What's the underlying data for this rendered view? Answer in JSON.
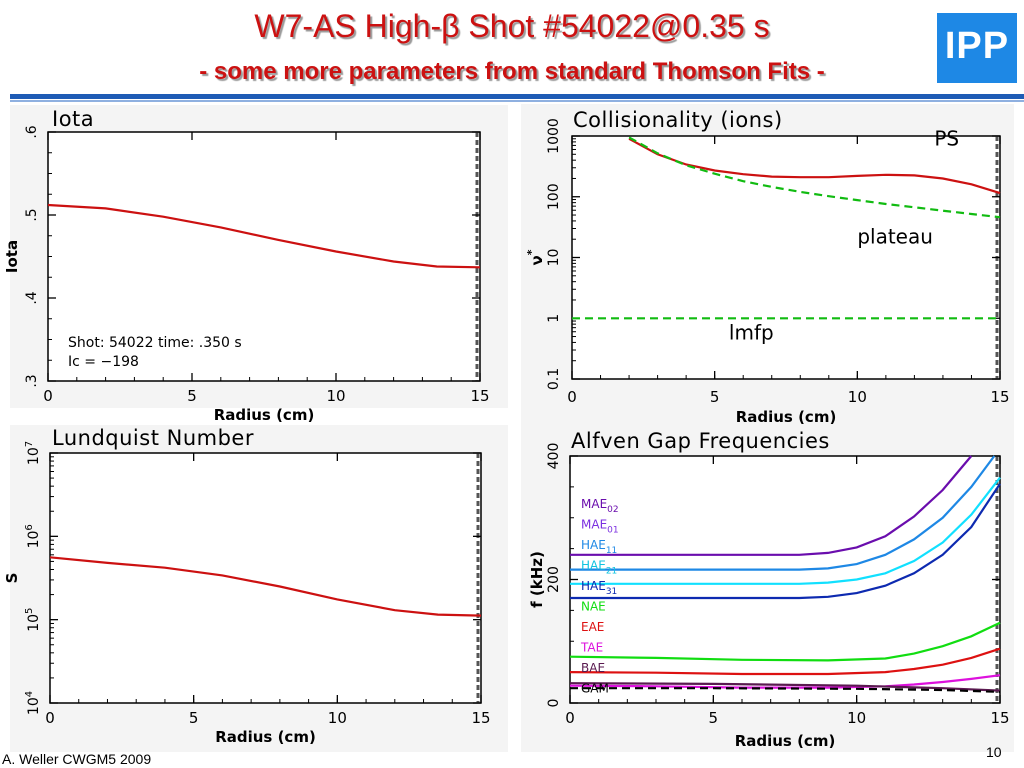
{
  "header": {
    "title": "W7-AS High-β Shot #54022@0.35 s",
    "subtitle": "- some more parameters from standard Thomson Fits -",
    "logo_text": "IPP"
  },
  "footer": {
    "author": "A. Weller CWGM5 2009",
    "page": "10"
  },
  "colors": {
    "red": "#cc1111",
    "green": "#11bb11",
    "panel_bg": "#f4f4f4",
    "blue_rule": "#1e5bb5"
  },
  "chart_data": [
    {
      "type": "line",
      "title": "Iota",
      "xlabel": "Radius (cm)",
      "ylabel": "Iota",
      "xlim": [
        0,
        15
      ],
      "ylim": [
        0.3,
        0.6
      ],
      "xticks": [
        0,
        5,
        10,
        15
      ],
      "xtick_labels": [
        "0",
        "5",
        "10",
        "15"
      ],
      "yticks": [
        0.3,
        0.4,
        0.5,
        0.6
      ],
      "ytick_labels": [
        ".3",
        ".4",
        ".5",
        ".6"
      ],
      "yscale": "linear",
      "annotations": [
        {
          "text": "Shot:    54022   time:   .350 s"
        },
        {
          "text": "Ic =    −198"
        }
      ],
      "series": [
        {
          "color": "#cc1111",
          "dash": false,
          "x": [
            0,
            2,
            4,
            6,
            8,
            10,
            12,
            13.5,
            15
          ],
          "y": [
            0.512,
            0.508,
            0.498,
            0.485,
            0.47,
            0.456,
            0.444,
            0.438,
            0.437
          ]
        }
      ]
    },
    {
      "type": "line",
      "title": "Collisionality (ions)",
      "xlabel": "Radius (cm)",
      "ylabel": "ν*",
      "xlim": [
        0,
        15
      ],
      "ylim": [
        0.1,
        1000
      ],
      "xticks": [
        0,
        5,
        10,
        15
      ],
      "xtick_labels": [
        "0",
        "5",
        "10",
        "15"
      ],
      "yticks": [
        0.1,
        1,
        10,
        100,
        1000
      ],
      "ytick_labels": [
        "0.1",
        "1",
        "10",
        "100",
        "1000"
      ],
      "yscale": "log",
      "annotations": [
        {
          "text": "PS",
          "x": 12.7,
          "y": 700
        },
        {
          "text": "plateau",
          "x": 10,
          "y": 17
        },
        {
          "text": "lmfp",
          "x": 5.5,
          "y": 0.45
        }
      ],
      "series": [
        {
          "color": "#cc1111",
          "dash": false,
          "x": [
            2,
            3,
            4,
            5,
            6,
            7,
            8,
            9,
            10,
            11,
            12,
            13,
            14,
            15
          ],
          "y": [
            900,
            500,
            340,
            270,
            235,
            215,
            210,
            210,
            220,
            230,
            225,
            200,
            160,
            115
          ]
        },
        {
          "color": "#11bb11",
          "dash": true,
          "x": [
            2,
            3,
            4,
            5,
            6,
            7,
            8,
            9,
            10,
            11,
            12,
            13,
            14,
            15
          ],
          "y": [
            950,
            520,
            330,
            240,
            180,
            145,
            120,
            102,
            88,
            76,
            67,
            59,
            52,
            46
          ]
        },
        {
          "color": "#11bb11",
          "dash": true,
          "x": [
            0,
            15
          ],
          "y": [
            1,
            1
          ]
        }
      ]
    },
    {
      "type": "line",
      "title": "Lundquist Number",
      "xlabel": "Radius (cm)",
      "ylabel": "S",
      "xlim": [
        0,
        15
      ],
      "ylim": [
        10000,
        10000000
      ],
      "xticks": [
        0,
        5,
        10,
        15
      ],
      "xtick_labels": [
        "0",
        "5",
        "10",
        "15"
      ],
      "yticks": [
        10000,
        100000,
        1000000,
        10000000
      ],
      "ytick_labels": [
        "10^4",
        "10^5",
        "10^6",
        "10^7"
      ],
      "yscale": "log",
      "series": [
        {
          "color": "#cc1111",
          "dash": false,
          "x": [
            0,
            2,
            4,
            6,
            8,
            10,
            12,
            13.5,
            15
          ],
          "y": [
            560000,
            480000,
            420000,
            340000,
            250000,
            175000,
            130000,
            115000,
            112000
          ]
        }
      ]
    },
    {
      "type": "line",
      "title": "Alfven Gap Frequencies",
      "xlabel": "Radius (cm)",
      "ylabel": "f (kHz)",
      "xlim": [
        0,
        15
      ],
      "ylim": [
        0,
        400
      ],
      "xticks": [
        0,
        5,
        10,
        15
      ],
      "xtick_labels": [
        "0",
        "5",
        "10",
        "15"
      ],
      "yticks": [
        0,
        200,
        400
      ],
      "ytick_labels": [
        "0",
        "200",
        "400"
      ],
      "yscale": "linear",
      "legend_position": "left",
      "legend": [
        {
          "base": "MAE",
          "sub": "02",
          "color": "#6a0dad"
        },
        {
          "base": "MAE",
          "sub": "01",
          "color": "#7b2fe0"
        },
        {
          "base": "HAE",
          "sub": "11",
          "color": "#1e88e5"
        },
        {
          "base": "HAE",
          "sub": "21",
          "color": "#11c4e0"
        },
        {
          "base": "HAE",
          "sub": "31",
          "color": "#0d2ab0"
        },
        {
          "base": "NAE",
          "sub": "",
          "color": "#11dd11"
        },
        {
          "base": "EAE",
          "sub": "",
          "color": "#dd1111"
        },
        {
          "base": "TAE",
          "sub": "",
          "color": "#dd11dd"
        },
        {
          "base": "BAE",
          "sub": "",
          "color": "#5a1a50"
        },
        {
          "base": "GAM",
          "sub": "",
          "color": "#000000"
        }
      ],
      "series": [
        {
          "color": "#6a0dad",
          "dash": false,
          "x": [
            0,
            8,
            9,
            10,
            11,
            12,
            13,
            14
          ],
          "y": [
            240,
            240,
            243,
            252,
            270,
            302,
            345,
            400
          ]
        },
        {
          "color": "#1e88e5",
          "dash": false,
          "x": [
            0,
            8,
            9,
            10,
            11,
            12,
            13,
            14,
            14.8
          ],
          "y": [
            216,
            216,
            218,
            225,
            240,
            265,
            300,
            350,
            400
          ]
        },
        {
          "color": "#11e0ff",
          "dash": false,
          "x": [
            0,
            8,
            9,
            10,
            11,
            12,
            13,
            14,
            15
          ],
          "y": [
            193,
            193,
            195,
            200,
            210,
            230,
            260,
            305,
            365
          ]
        },
        {
          "color": "#0d2ab0",
          "dash": false,
          "x": [
            0,
            8,
            9,
            10,
            11,
            12,
            13,
            14,
            15
          ],
          "y": [
            170,
            170,
            172,
            178,
            190,
            210,
            240,
            285,
            355
          ]
        },
        {
          "color": "#11dd11",
          "dash": false,
          "x": [
            0,
            3,
            6,
            9,
            11,
            12,
            13,
            14,
            15
          ],
          "y": [
            75,
            73,
            70,
            69,
            72,
            80,
            92,
            108,
            130
          ]
        },
        {
          "color": "#dd1111",
          "dash": false,
          "x": [
            0,
            3,
            6,
            9,
            11,
            12,
            13,
            14,
            15
          ],
          "y": [
            50,
            49,
            47,
            47,
            50,
            55,
            62,
            73,
            88
          ]
        },
        {
          "color": "#dd11dd",
          "dash": false,
          "x": [
            0,
            3,
            6,
            9,
            11,
            12,
            13,
            14,
            15
          ],
          "y": [
            28,
            27,
            25,
            25,
            27,
            30,
            34,
            39,
            45
          ]
        },
        {
          "color": "#5a1a50",
          "dash": false,
          "x": [
            0,
            5,
            10,
            13,
            15
          ],
          "y": [
            32,
            31,
            28,
            24,
            20
          ]
        },
        {
          "color": "#000000",
          "dash": true,
          "x": [
            0,
            5,
            10,
            13,
            15
          ],
          "y": [
            24,
            24,
            23,
            21,
            18
          ]
        }
      ]
    }
  ]
}
